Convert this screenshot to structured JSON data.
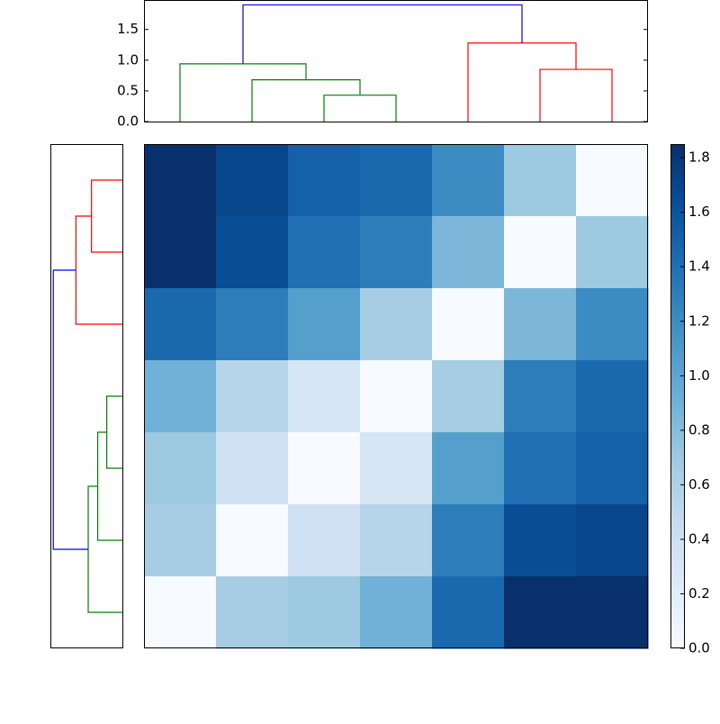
{
  "chart_data": [
    {
      "type": "dendrogram",
      "orientation": "top",
      "xlim": [
        0,
        70
      ],
      "ylim": [
        0,
        1.98
      ],
      "yticks": [
        {
          "value": 0,
          "label": "0.0"
        },
        0.5,
        {
          "value": 1,
          "label": "1.0"
        },
        1.5
      ],
      "links": [
        {
          "x": [
            25,
            25,
            35,
            35
          ],
          "y": [
            0,
            0.43,
            0.43,
            0
          ],
          "color": "#008000"
        },
        {
          "x": [
            15,
            15,
            30,
            30
          ],
          "y": [
            0,
            0.68,
            0.68,
            0.43
          ],
          "color": "#008000"
        },
        {
          "x": [
            5,
            5,
            22.5,
            22.5
          ],
          "y": [
            0,
            0.94,
            0.94,
            0.68
          ],
          "color": "#008000"
        },
        {
          "x": [
            55,
            55,
            65,
            65
          ],
          "y": [
            0,
            0.85,
            0.85,
            0
          ],
          "color": "#ff0000"
        },
        {
          "x": [
            45,
            45,
            60,
            60
          ],
          "y": [
            0,
            1.28,
            1.28,
            0.85
          ],
          "color": "#ff0000"
        },
        {
          "x": [
            13.75,
            13.75,
            52.5,
            52.5
          ],
          "y": [
            0.94,
            1.9,
            1.9,
            1.28
          ],
          "color": "#0000ff"
        }
      ]
    },
    {
      "type": "dendrogram",
      "orientation": "left",
      "xlim": [
        1.98,
        0
      ],
      "ylim": [
        70,
        0
      ],
      "links": [
        {
          "x": [
            0,
            0.85,
            0.85,
            0
          ],
          "y": [
            5,
            5,
            15,
            15
          ],
          "color": "#ff0000"
        },
        {
          "x": [
            0.85,
            1.28,
            1.28,
            0
          ],
          "y": [
            10,
            10,
            25,
            25
          ],
          "color": "#ff0000"
        },
        {
          "x": [
            0,
            0.43,
            0.43,
            0
          ],
          "y": [
            35,
            35,
            45,
            45
          ],
          "color": "#008000"
        },
        {
          "x": [
            0.43,
            0.68,
            0.68,
            0
          ],
          "y": [
            40,
            40,
            55,
            55
          ],
          "color": "#008000"
        },
        {
          "x": [
            0.68,
            0.94,
            0.94,
            0
          ],
          "y": [
            47.5,
            47.5,
            65,
            65
          ],
          "color": "#008000"
        },
        {
          "x": [
            1.28,
            1.9,
            1.9,
            0.94
          ],
          "y": [
            17.5,
            17.5,
            56.25,
            56.25
          ],
          "color": "#0000ff"
        }
      ]
    },
    {
      "type": "heatmap",
      "colormap": "Blues",
      "clim": [
        0,
        1.85
      ],
      "matrix": [
        [
          1.85,
          1.7,
          1.5,
          1.45,
          1.2,
          0.7,
          0.0
        ],
        [
          1.85,
          1.65,
          1.4,
          1.3,
          0.85,
          0.0,
          0.7
        ],
        [
          1.45,
          1.3,
          1.05,
          0.65,
          0.0,
          0.85,
          1.2
        ],
        [
          0.9,
          0.55,
          0.3,
          0.0,
          0.65,
          1.3,
          1.45
        ],
        [
          0.7,
          0.38,
          0.0,
          0.3,
          1.05,
          1.4,
          1.5
        ],
        [
          0.65,
          0.0,
          0.38,
          0.55,
          1.3,
          1.65,
          1.7
        ],
        [
          0.0,
          0.65,
          0.7,
          0.9,
          1.45,
          1.85,
          1.85
        ]
      ],
      "colorbar_ticks": [
        {
          "value": 0,
          "label": "0.0"
        },
        0.2,
        0.4,
        0.6,
        0.8,
        {
          "value": 1,
          "label": "1.0"
        },
        1.2,
        1.4,
        1.6,
        1.8
      ]
    }
  ]
}
